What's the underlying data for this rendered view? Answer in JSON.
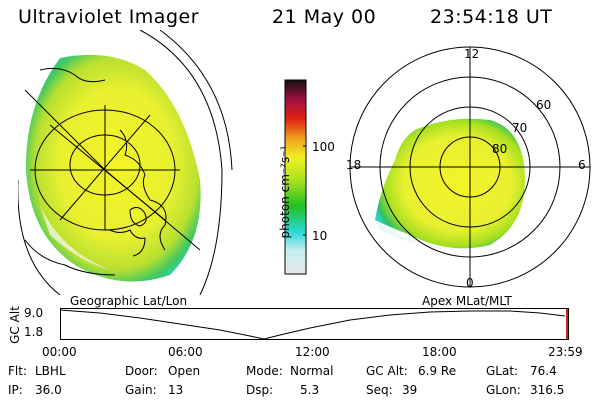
{
  "header": {
    "instrument": "Ultraviolet Imager",
    "date": "21 May 00",
    "time": "23:54:18 UT"
  },
  "colorbar": {
    "unit_label": "photon cm⁻²s⁻¹",
    "ticks": [
      "100",
      "10"
    ],
    "scale": "log",
    "colors": [
      "#e8e8e8",
      "#28d8d8",
      "#20c020",
      "#a8e020",
      "#f0f020",
      "#f0a020",
      "#e02010",
      "#a01040",
      "#501050",
      "#101010"
    ]
  },
  "geo_map": {
    "caption": "Geographic Lat/Lon"
  },
  "polar_plot": {
    "caption": "Apex MLat/MLT",
    "mlt_labels": {
      "top": "12",
      "left": "18",
      "right": "6",
      "bottom": "0"
    },
    "lat_labels": [
      "60",
      "70",
      "80"
    ]
  },
  "altitude_plot": {
    "ylabel": "GC Alt",
    "yticks": [
      "9.0",
      "1.8"
    ],
    "xticks": [
      "00:00",
      "06:00",
      "12:00",
      "18:00",
      "23:59"
    ]
  },
  "status": {
    "flt_label": "Flt:",
    "flt_value": "LBHL",
    "ip_label": "IP:",
    "ip_value": "36.0",
    "door_label": "Door:",
    "door_value": "Open",
    "gain_label": "Gain:",
    "gain_value": "13",
    "mode_label": "Mode:",
    "mode_value": "Normal",
    "dsp_label": "Dsp:",
    "dsp_value": "5.3",
    "gcalt_label": "GC Alt:",
    "gcalt_value": "6.9 Re",
    "seq_label": "Seq:",
    "seq_value": "39",
    "glat_label": "GLat:",
    "glat_value": "76.4",
    "glon_label": "GLon:",
    "glon_value": "316.5"
  }
}
